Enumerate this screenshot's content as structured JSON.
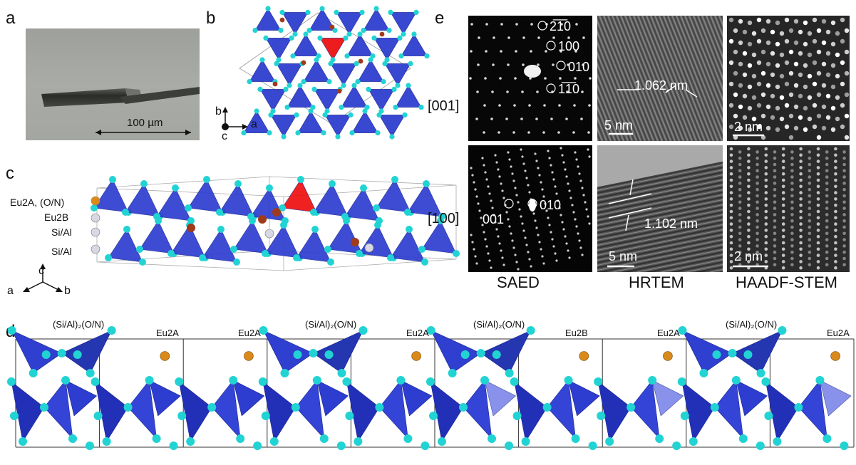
{
  "panels": {
    "a": {
      "letter": "a",
      "scale_label": "100 µm"
    },
    "b": {
      "letter": "b",
      "axis_labels": {
        "b": "b",
        "c": "c",
        "a": "a"
      }
    },
    "c": {
      "letter": "c",
      "site_labels": [
        "Eu2A, (O/N)",
        "Eu2B",
        "Si/Al",
        "Si/Al"
      ],
      "axis_labels": {
        "c": "c",
        "a": "a",
        "b": "b"
      }
    },
    "d": {
      "letter": "d",
      "labels": [
        "(Si/Al)₂(O/N)",
        "Eu2A",
        "Eu2A",
        "(Si/Al)₂(O/N)",
        "Eu2A",
        "(Si/Al)₂(O/N)",
        "Eu2B",
        "Eu2A",
        "(Si/Al)₂(O/N)",
        "Eu2A"
      ]
    },
    "e": {
      "letter": "e",
      "zone_axes": [
        "[001]",
        "[100]"
      ],
      "saed_001_spots": [
        "2̅1̅0",
        "100",
        "010",
        "1̅1̅0"
      ],
      "saed_100_spots": [
        "001",
        "010"
      ],
      "hrtem_001_spacing": "1.062 nm",
      "hrtem_100_spacing": "1.102 nm",
      "scale_5nm": "5 nm",
      "scale_2nm": "2 nm",
      "captions": [
        "SAED",
        "HRTEM",
        "HAADF-STEM"
      ]
    }
  },
  "colors": {
    "tetrahedron": "#2f3fcf",
    "tetra_highlight": "#ee1111",
    "atom_O": "#22d3d3",
    "atom_Eu": "#a03a1a",
    "atom_Eu_orange": "#d98a1a"
  }
}
